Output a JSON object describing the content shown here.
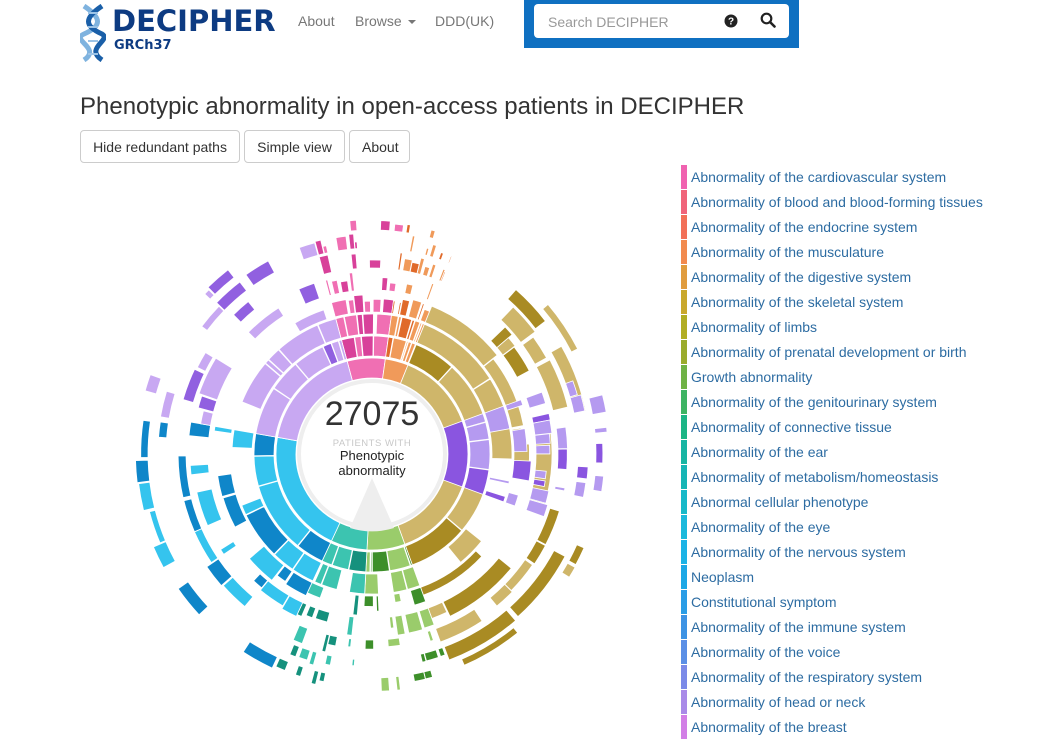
{
  "header": {
    "brand": "DECIPHER",
    "build": "GRCh37",
    "nav": [
      {
        "label": "About"
      },
      {
        "label": "Browse"
      },
      {
        "label": "DDD(UK)"
      }
    ],
    "search_placeholder": "Search DECIPHER"
  },
  "page": {
    "title": "Phenotypic abnormality in open-access patients in DECIPHER",
    "buttons": {
      "hide_redundant": "Hide redundant paths",
      "simple_view": "Simple view",
      "about": "About"
    }
  },
  "center": {
    "count": "27075",
    "caption": "PATIENTS WITH",
    "term_line1": "Phenotypic",
    "term_line2": "abnormality"
  },
  "legend": [
    {
      "label": "Abnormality of the cardiovascular system",
      "color": "#f062b0"
    },
    {
      "label": "Abnormality of blood and blood-forming tissues",
      "color": "#f0647a"
    },
    {
      "label": "Abnormality of the endocrine system",
      "color": "#f27058"
    },
    {
      "label": "Abnormality of the musculature",
      "color": "#f28a4e"
    },
    {
      "label": "Abnormality of the digestive system",
      "color": "#e09c3e"
    },
    {
      "label": "Abnormality of the skeletal system",
      "color": "#c9a82c"
    },
    {
      "label": "Abnormality of limbs",
      "color": "#b1ad24"
    },
    {
      "label": "Abnormality of prenatal development or birth",
      "color": "#9aab2c"
    },
    {
      "label": "Growth abnormality",
      "color": "#6fb245"
    },
    {
      "label": "Abnormality of the genitourinary system",
      "color": "#3db463"
    },
    {
      "label": "Abnormality of connective tissue",
      "color": "#1cb585"
    },
    {
      "label": "Abnormality of the ear",
      "color": "#17b5a3"
    },
    {
      "label": "Abnormality of metabolism/homeostasis",
      "color": "#16b5b5"
    },
    {
      "label": "Abnormal cellular phenotype",
      "color": "#17b9c9"
    },
    {
      "label": "Abnormality of the eye",
      "color": "#1bb9dc"
    },
    {
      "label": "Abnormality of the nervous system",
      "color": "#1cb3e6"
    },
    {
      "label": "Neoplasm",
      "color": "#1da8e6"
    },
    {
      "label": "Constitutional symptom",
      "color": "#2a9de6"
    },
    {
      "label": "Abnormality of the immune system",
      "color": "#3d93e4"
    },
    {
      "label": "Abnormality of the voice",
      "color": "#5a8fe6"
    },
    {
      "label": "Abnormality of the respiratory system",
      "color": "#7b8ae8"
    },
    {
      "label": "Abnormality of head or neck",
      "color": "#a98ae8"
    },
    {
      "label": "Abnormality of the breast",
      "color": "#d27fe6"
    }
  ]
}
